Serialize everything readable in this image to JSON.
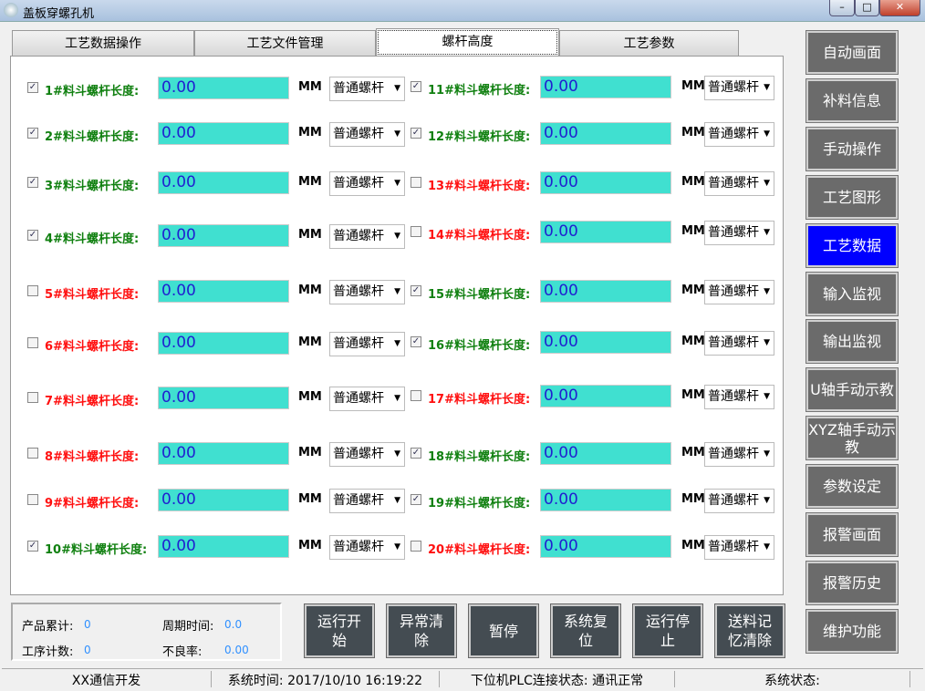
{
  "window": {
    "title": "盖板穿螺孔机",
    "minimize": "–",
    "maximize": "□",
    "close": "✕"
  },
  "tabs": [
    {
      "label": "工艺数据操作"
    },
    {
      "label": "工艺文件管理"
    },
    {
      "label": "螺杆高度",
      "active": true
    },
    {
      "label": "工艺参数"
    }
  ],
  "unit": "MM",
  "colors": {
    "checked_label": "#108010",
    "unchecked_label": "#ff1010",
    "value_bg": "#40e0d0",
    "active_nav": "#0000ff"
  },
  "rows": [
    {
      "label": "1#料斗螺杆长度:",
      "checked": true,
      "value": "0.00",
      "type": "普通螺杆"
    },
    {
      "label": "2#料斗螺杆长度:",
      "checked": true,
      "value": "0.00",
      "type": "普通螺杆"
    },
    {
      "label": "3#料斗螺杆长度:",
      "checked": true,
      "value": "0.00",
      "type": "普通螺杆"
    },
    {
      "label": "4#料斗螺杆长度:",
      "checked": true,
      "value": "0.00",
      "type": "普通螺杆"
    },
    {
      "label": "5#料斗螺杆长度:",
      "checked": false,
      "value": "0.00",
      "type": "普通螺杆"
    },
    {
      "label": "6#料斗螺杆长度:",
      "checked": false,
      "value": "0.00",
      "type": "普通螺杆"
    },
    {
      "label": "7#料斗螺杆长度:",
      "checked": false,
      "value": "0.00",
      "type": "普通螺杆"
    },
    {
      "label": "8#料斗螺杆长度:",
      "checked": false,
      "value": "0.00",
      "type": "普通螺杆"
    },
    {
      "label": "9#料斗螺杆长度:",
      "checked": false,
      "value": "0.00",
      "type": "普通螺杆"
    },
    {
      "label": "10#料斗螺杆长度:",
      "checked": true,
      "value": "0.00",
      "type": "普通螺杆"
    },
    {
      "label": "11#料斗螺杆长度:",
      "checked": true,
      "value": "0.00",
      "type": "普通螺杆"
    },
    {
      "label": "12#料斗螺杆长度:",
      "checked": true,
      "value": "0.00",
      "type": "普通螺杆"
    },
    {
      "label": "13#料斗螺杆长度:",
      "checked": false,
      "value": "0.00",
      "type": "普通螺杆"
    },
    {
      "label": "14#料斗螺杆长度:",
      "checked": false,
      "value": "0.00",
      "type": "普通螺杆"
    },
    {
      "label": "15#料斗螺杆长度:",
      "checked": true,
      "value": "0.00",
      "type": "普通螺杆"
    },
    {
      "label": "16#料斗螺杆长度:",
      "checked": true,
      "value": "0.00",
      "type": "普通螺杆"
    },
    {
      "label": "17#料斗螺杆长度:",
      "checked": false,
      "value": "0.00",
      "type": "普通螺杆"
    },
    {
      "label": "18#料斗螺杆长度:",
      "checked": true,
      "value": "0.00",
      "type": "普通螺杆"
    },
    {
      "label": "19#料斗螺杆长度:",
      "checked": true,
      "value": "0.00",
      "type": "普通螺杆"
    },
    {
      "label": "20#料斗螺杆长度:",
      "checked": false,
      "value": "0.00",
      "type": "普通螺杆"
    }
  ],
  "nav": [
    {
      "label": "自动画面"
    },
    {
      "label": "补料信息"
    },
    {
      "label": "手动操作"
    },
    {
      "label": "工艺图形"
    },
    {
      "label": "工艺数据",
      "active": true
    },
    {
      "label": "输入监视"
    },
    {
      "label": "输出监视"
    },
    {
      "label": "U轴手动示教"
    },
    {
      "label": "XYZ轴手动示教"
    },
    {
      "label": "参数设定"
    },
    {
      "label": "报警画面"
    },
    {
      "label": "报警历史"
    },
    {
      "label": "维护功能"
    }
  ],
  "stats": {
    "product_total_label": "产品累计:",
    "product_total": "0",
    "cycle_time_label": "周期时间:",
    "cycle_time": "0.0",
    "process_count_label": "工序计数:",
    "process_count": "0",
    "defect_rate_label": "不良率:",
    "defect_rate": "0.00"
  },
  "actions": [
    {
      "label": "运行开始"
    },
    {
      "label": "异常清除"
    },
    {
      "label": "暂停"
    },
    {
      "label": "系统复位"
    },
    {
      "label": "运行停止"
    },
    {
      "label": "送料记忆清除"
    }
  ],
  "status": {
    "developer": "XX通信开发",
    "time": "系统时间: 2017/10/10 16:19:22",
    "plc": "下位机PLC连接状态: 通讯正常",
    "system": "系统状态:"
  }
}
